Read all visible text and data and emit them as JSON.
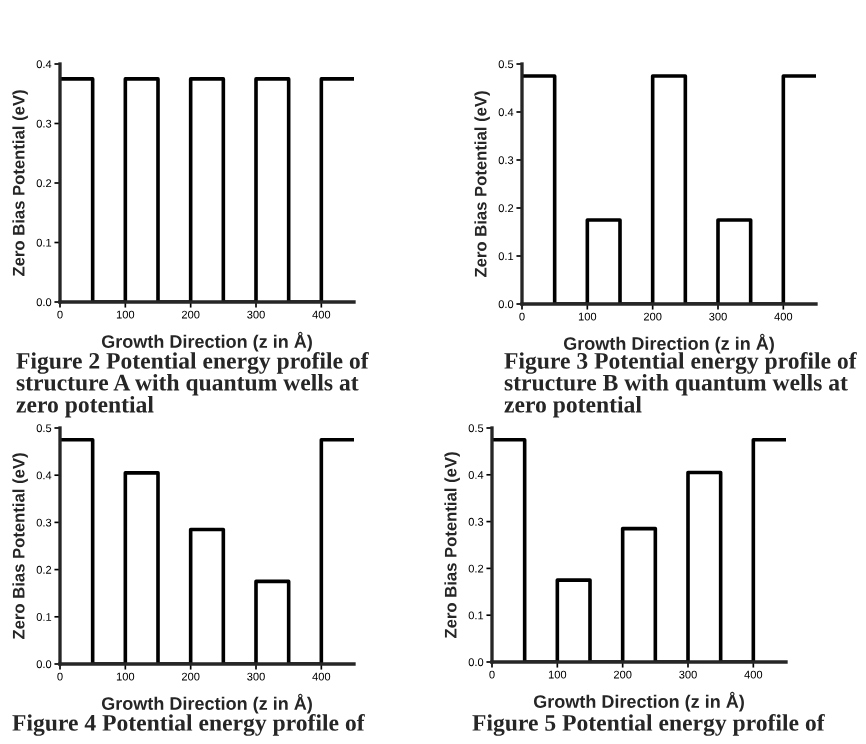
{
  "chart_data": [
    {
      "type": "line",
      "xlabel": "Growth Direction (z in Å)",
      "ylabel": "Zero Bias Potential (eV)",
      "xlim": [
        0,
        450
      ],
      "ylim": [
        0,
        0.4
      ],
      "xticks": [
        0,
        100,
        200,
        300,
        400
      ],
      "yticks": [
        {
          "value": 0,
          "label": "0.0"
        },
        {
          "value": 0.1,
          "label": "0.1"
        },
        {
          "value": 0.2,
          "label": "0.2"
        },
        {
          "value": 0.3,
          "label": "0.3"
        },
        {
          "value": 0.4,
          "label": "0.4"
        }
      ],
      "grid": false,
      "legend": false,
      "marker": "none",
      "line_style": "solid",
      "annotations": [
        "Figure 2 Potential energy profile of structure A with quantum wells at zero potential"
      ],
      "series": [
        {
          "color": "#000000",
          "x": [
            0,
            50,
            50,
            100,
            100,
            150,
            150,
            200,
            200,
            250,
            250,
            300,
            300,
            350,
            350,
            400,
            400,
            450
          ],
          "values": [
            0.375,
            0.375,
            0,
            0,
            0.375,
            0.375,
            0,
            0,
            0.375,
            0.375,
            0,
            0,
            0.375,
            0.375,
            0,
            0,
            0.375,
            0.375
          ]
        }
      ]
    },
    {
      "type": "line",
      "xlabel": "Growth Direction (z in Å)",
      "ylabel": "Zero Bias Potential (eV)",
      "xlim": [
        0,
        450
      ],
      "ylim": [
        0,
        0.5
      ],
      "xticks": [
        0,
        100,
        200,
        300,
        400
      ],
      "yticks": [
        {
          "value": 0,
          "label": "0.0"
        },
        {
          "value": 0.1,
          "label": "0.1"
        },
        {
          "value": 0.2,
          "label": "0.2"
        },
        {
          "value": 0.3,
          "label": "0.3"
        },
        {
          "value": 0.4,
          "label": "0.4"
        },
        {
          "value": 0.5,
          "label": "0.5"
        }
      ],
      "grid": false,
      "legend": false,
      "marker": "none",
      "line_style": "solid",
      "annotations": [
        "Figure 3 Potential energy profile of structure B with quantum wells at zero potential"
      ],
      "series": [
        {
          "color": "#000000",
          "x": [
            0,
            50,
            50,
            100,
            100,
            150,
            150,
            200,
            200,
            250,
            250,
            300,
            300,
            350,
            350,
            400,
            400,
            450
          ],
          "values": [
            0.475,
            0.475,
            0,
            0,
            0.175,
            0.175,
            0,
            0,
            0.475,
            0.475,
            0,
            0,
            0.175,
            0.175,
            0,
            0,
            0.475,
            0.475
          ]
        }
      ]
    },
    {
      "type": "line",
      "xlabel": "Growth Direction (z in Å)",
      "ylabel": "Zero Bias Potential (eV)",
      "xlim": [
        0,
        450
      ],
      "ylim": [
        0,
        0.5
      ],
      "xticks": [
        0,
        100,
        200,
        300,
        400
      ],
      "yticks": [
        {
          "value": 0,
          "label": "0.0"
        },
        {
          "value": 0.1,
          "label": "0.1"
        },
        {
          "value": 0.2,
          "label": "0.2"
        },
        {
          "value": 0.3,
          "label": "0.3"
        },
        {
          "value": 0.4,
          "label": "0.4"
        },
        {
          "value": 0.5,
          "label": "0.5"
        }
      ],
      "grid": false,
      "legend": false,
      "marker": "none",
      "line_style": "solid",
      "annotations": [
        "Figure 4 Potential energy profile of"
      ],
      "series": [
        {
          "color": "#000000",
          "x": [
            0,
            50,
            50,
            100,
            100,
            150,
            150,
            200,
            200,
            250,
            250,
            300,
            300,
            350,
            350,
            400,
            400,
            450
          ],
          "values": [
            0.475,
            0.475,
            0,
            0,
            0.405,
            0.405,
            0,
            0,
            0.285,
            0.285,
            0,
            0,
            0.175,
            0.175,
            0,
            0,
            0.475,
            0.475
          ]
        }
      ]
    },
    {
      "type": "line",
      "xlabel": "Growth Direction (z in Å)",
      "ylabel": "Zero Bias Potential (eV)",
      "xlim": [
        0,
        450
      ],
      "ylim": [
        0,
        0.5
      ],
      "xticks": [
        0,
        100,
        200,
        300,
        400
      ],
      "yticks": [
        {
          "value": 0,
          "label": "0.0"
        },
        {
          "value": 0.1,
          "label": "0.1"
        },
        {
          "value": 0.2,
          "label": "0.2"
        },
        {
          "value": 0.3,
          "label": "0.3"
        },
        {
          "value": 0.4,
          "label": "0.4"
        },
        {
          "value": 0.5,
          "label": "0.5"
        }
      ],
      "grid": false,
      "legend": false,
      "marker": "none",
      "line_style": "solid",
      "annotations": [
        "Figure 5 Potential energy profile of"
      ],
      "series": [
        {
          "color": "#000000",
          "x": [
            0,
            50,
            50,
            100,
            100,
            150,
            150,
            200,
            200,
            250,
            250,
            300,
            300,
            350,
            350,
            400,
            400,
            450
          ],
          "values": [
            0.475,
            0.475,
            0,
            0,
            0.175,
            0.175,
            0,
            0,
            0.285,
            0.285,
            0,
            0,
            0.405,
            0.405,
            0,
            0,
            0.475,
            0.475
          ]
        }
      ]
    }
  ]
}
